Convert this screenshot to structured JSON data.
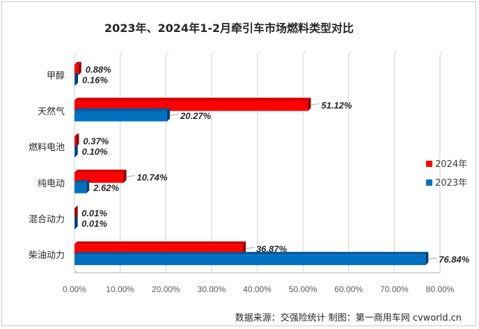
{
  "chart_data": {
    "type": "bar",
    "orientation": "horizontal",
    "title": "2023年、2024年1-2月牵引车市场燃料类型对比",
    "categories": [
      "甲醇",
      "天然气",
      "燃料电池",
      "纯电动",
      "混合动力",
      "柴油动力"
    ],
    "series": [
      {
        "name": "2024年",
        "color": "#ff0000",
        "values": [
          0.88,
          51.12,
          0.37,
          10.74,
          0.01,
          36.87
        ],
        "labels": [
          "0.88%",
          "51.12%",
          "0.37%",
          "10.74%",
          "0.01%",
          "36.87%"
        ]
      },
      {
        "name": "2023年",
        "color": "#0070c0",
        "values": [
          0.16,
          20.27,
          0.1,
          2.62,
          0.01,
          76.84
        ],
        "labels": [
          "0.16%",
          "20.27%",
          "0.10%",
          "2.62%",
          "0.01%",
          "76.84%"
        ]
      }
    ],
    "xlim": [
      0,
      80
    ],
    "xticks": [
      "0.00%",
      "10.00%",
      "20.00%",
      "30.00%",
      "40.00%",
      "50.00%",
      "60.00%",
      "70.00%",
      "80.00%"
    ],
    "grid": true,
    "legend_position": "right"
  },
  "footer": {
    "source": "数据来源：交强险统计    制图：第一商用车网 cvworld.cn"
  }
}
